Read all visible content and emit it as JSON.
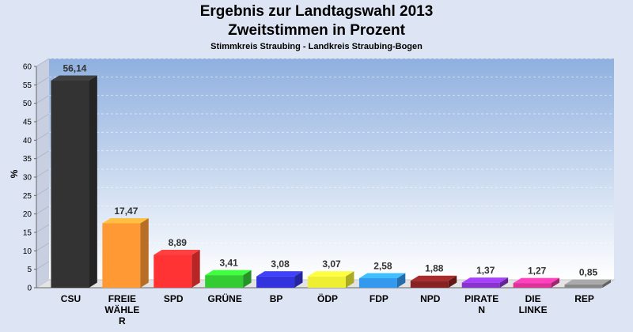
{
  "chart_data": {
    "type": "bar",
    "title": "Ergebnis zur Landtagswahl 2013",
    "subtitle_line": "Zweitstimmen in Prozent",
    "subtitle": "Stimmkreis Straubing - Landkreis Straubing-Bogen",
    "ylabel": "%",
    "xlabel": "",
    "ylim": [
      0,
      60
    ],
    "yticks": [
      0,
      5,
      10,
      15,
      20,
      25,
      30,
      35,
      40,
      45,
      50,
      55,
      60
    ],
    "grid": true,
    "categories": [
      [
        "CSU"
      ],
      [
        "FREIE",
        "WÄHLE",
        "R"
      ],
      [
        "SPD"
      ],
      [
        "GRÜNE"
      ],
      [
        "BP"
      ],
      [
        "ÖDP"
      ],
      [
        "FDP"
      ],
      [
        "NPD"
      ],
      [
        "PIRATE",
        "N"
      ],
      [
        "DIE",
        "LINKE"
      ],
      [
        "REP"
      ]
    ],
    "values": [
      56.14,
      17.47,
      8.89,
      3.41,
      3.08,
      3.07,
      2.58,
      1.88,
      1.37,
      1.27,
      0.85
    ],
    "value_labels": [
      "56,14",
      "17,47",
      "8,89",
      "3,41",
      "3,08",
      "3,07",
      "2,58",
      "1,88",
      "1,37",
      "1,27",
      "0,85"
    ],
    "colors": [
      "#333333",
      "#ff9933",
      "#ff3333",
      "#33cc33",
      "#3333dd",
      "#eeee33",
      "#3399ee",
      "#882222",
      "#8833cc",
      "#dd3399",
      "#888888"
    ],
    "background_gradient": [
      "#8fb0df",
      "#ffffff"
    ]
  }
}
